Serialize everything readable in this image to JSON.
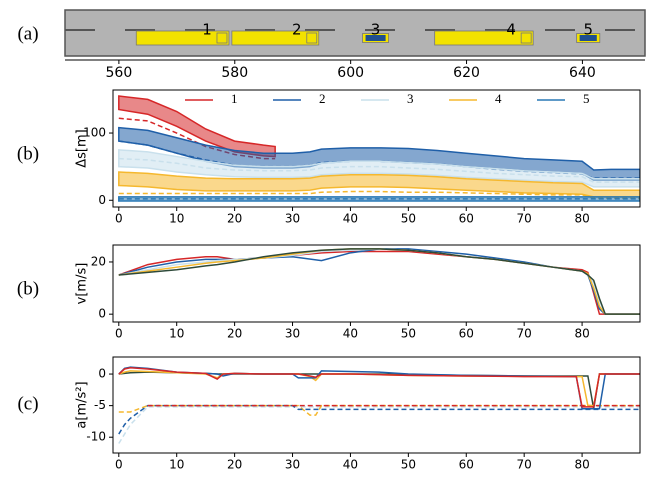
{
  "chart_data": [
    {
      "type": "scene",
      "panel_label": "(a)",
      "xlim": [
        550.7,
        650.8
      ],
      "xticks": [
        560,
        580,
        600,
        620,
        640
      ],
      "color": "#f2e200",
      "vehicles": [
        {
          "name": "1",
          "kind": "truck",
          "x": 571,
          "length": 16
        },
        {
          "name": "2",
          "kind": "truck",
          "x": 587,
          "length": 15
        },
        {
          "name": "3",
          "kind": "car",
          "x": 604.3,
          "length": 4.5
        },
        {
          "name": "4",
          "kind": "truck",
          "x": 623,
          "length": 17
        },
        {
          "name": "5",
          "kind": "car",
          "x": 641,
          "length": 4
        }
      ]
    },
    {
      "type": "line",
      "panel_label": "(b)",
      "ylabel": "Δs[m]",
      "legend": "top",
      "x": [
        0,
        5,
        10,
        15,
        20,
        25,
        27,
        30,
        33,
        35,
        40,
        45,
        50,
        55,
        60,
        65,
        70,
        75,
        80,
        82,
        85,
        90
      ],
      "xlim": [
        -1,
        90
      ],
      "xticks": [
        0,
        10,
        20,
        30,
        40,
        50,
        60,
        70,
        80
      ],
      "ylim": [
        -10,
        164
      ],
      "yticks": [
        0,
        100
      ],
      "series": [
        {
          "name": "1",
          "color": "#d62728",
          "dashed": true,
          "values": [
            122,
            118,
            100,
            80,
            68,
            62,
            62,
            null,
            null,
            null,
            null,
            null,
            null,
            null,
            null,
            null,
            null,
            null,
            null,
            null,
            null,
            null
          ],
          "upper": [
            155,
            150,
            132,
            106,
            88,
            82,
            80,
            null,
            null,
            null,
            null,
            null,
            null,
            null,
            null,
            null,
            null,
            null,
            null,
            null,
            null,
            null
          ],
          "lower": [
            135,
            128,
            110,
            88,
            72,
            66,
            65,
            null,
            null,
            null,
            null,
            null,
            null,
            null,
            null,
            null,
            null,
            null,
            null,
            null,
            null,
            null
          ]
        },
        {
          "name": "2",
          "color": "#1f5fa8",
          "dashed": true,
          "values": [
            88,
            82,
            70,
            60,
            52,
            50,
            50,
            50,
            52,
            56,
            58,
            58,
            56,
            54,
            50,
            46,
            43,
            41,
            39,
            33,
            33,
            33
          ],
          "upper": [
            108,
            104,
            93,
            82,
            74,
            70,
            70,
            70,
            72,
            76,
            78,
            78,
            77,
            74,
            70,
            66,
            62,
            60,
            58,
            45,
            46,
            46
          ],
          "lower": [
            88,
            82,
            70,
            58,
            50,
            48,
            48,
            48,
            50,
            55,
            58,
            58,
            56,
            54,
            50,
            47,
            44,
            42,
            40,
            30,
            30,
            30
          ]
        },
        {
          "name": "3",
          "color": "#c9e0ec",
          "dashed": true,
          "values": [
            62,
            60,
            55,
            48,
            45,
            44,
            44,
            44,
            45,
            48,
            50,
            50,
            48,
            46,
            43,
            40,
            38,
            36,
            35,
            27,
            27,
            27
          ],
          "upper": [
            75,
            72,
            65,
            58,
            52,
            50,
            50,
            50,
            52,
            55,
            58,
            58,
            56,
            54,
            50,
            47,
            44,
            42,
            40,
            32,
            32,
            32
          ],
          "lower": [
            50,
            48,
            42,
            38,
            35,
            34,
            34,
            34,
            35,
            38,
            40,
            40,
            39,
            37,
            34,
            32,
            30,
            28,
            27,
            20,
            20,
            20
          ]
        },
        {
          "name": "4",
          "color": "#f5b82e",
          "dashed": true,
          "values": [
            10,
            10,
            10,
            10,
            10,
            10,
            10,
            10,
            10,
            12,
            13,
            13,
            12,
            12,
            11,
            10,
            9,
            8,
            8,
            3,
            3,
            3
          ],
          "upper": [
            42,
            40,
            36,
            33,
            32,
            32,
            32,
            32,
            33,
            36,
            38,
            38,
            37,
            35,
            32,
            30,
            28,
            26,
            25,
            15,
            15,
            15
          ],
          "lower": [
            22,
            20,
            16,
            14,
            14,
            14,
            14,
            14,
            15,
            18,
            20,
            20,
            19,
            17,
            15,
            13,
            11,
            10,
            9,
            5,
            5,
            5
          ]
        },
        {
          "name": "5",
          "color": "#2878b5",
          "dashed": true,
          "values": [
            2,
            2,
            2,
            2,
            2,
            2,
            2,
            2,
            2,
            2,
            2,
            2,
            2,
            2,
            2,
            2,
            2,
            2,
            2,
            2,
            2,
            2
          ],
          "upper": [
            5,
            5,
            5,
            5,
            5,
            5,
            5,
            5,
            5,
            5,
            5,
            5,
            5,
            5,
            5,
            5,
            5,
            5,
            5,
            5,
            5,
            5
          ],
          "lower": [
            -1,
            -1,
            -1,
            -1,
            -1,
            -1,
            -1,
            -1,
            -1,
            -1,
            -1,
            -1,
            -1,
            -1,
            -1,
            -1,
            -1,
            -1,
            -1,
            -1,
            -1,
            -1
          ]
        }
      ]
    },
    {
      "type": "line",
      "panel_label": "(b)",
      "ylabel": "v[m/s]",
      "x": [
        0,
        5,
        10,
        15,
        17,
        20,
        25,
        30,
        35,
        40,
        45,
        50,
        55,
        60,
        65,
        70,
        75,
        80,
        81,
        82,
        83,
        84,
        90
      ],
      "xlim": [
        -1,
        90
      ],
      "xticks": [
        0,
        10,
        20,
        30,
        40,
        50,
        60,
        70,
        80
      ],
      "ylim": [
        -3,
        26.5
      ],
      "yticks": [
        0,
        20
      ],
      "series": [
        {
          "color": "#d62728",
          "values": [
            15,
            19,
            21,
            22,
            22,
            21,
            21.5,
            22.5,
            23.5,
            24,
            24,
            24,
            23,
            22,
            21,
            19.5,
            18,
            17,
            16,
            8,
            0,
            0,
            0
          ]
        },
        {
          "color": "#1f5fa8",
          "values": [
            15,
            18,
            20,
            21,
            21,
            21,
            21.5,
            22,
            20.5,
            23.5,
            25,
            25,
            24,
            23,
            21.5,
            20,
            18,
            16.5,
            15,
            9,
            2,
            0,
            0
          ]
        },
        {
          "color": "#c9e0ec",
          "values": [
            15,
            17,
            19,
            20,
            20.5,
            21,
            21.5,
            22.5,
            24,
            24.5,
            25,
            24.5,
            23.5,
            22,
            21,
            19.5,
            18,
            16.5,
            15,
            12,
            5,
            0,
            0
          ]
        },
        {
          "color": "#f5b82e",
          "values": [
            15,
            16.5,
            18,
            19.5,
            20,
            20.5,
            21.5,
            23,
            24.5,
            25,
            25,
            24.5,
            23.5,
            22,
            21,
            19.5,
            18,
            16.5,
            15.5,
            10,
            3,
            0,
            0
          ]
        },
        {
          "color": "#2e4a3a",
          "values": [
            15,
            16,
            17,
            18.5,
            19,
            20,
            22,
            23.5,
            24.5,
            25,
            25,
            24.5,
            23.5,
            22,
            21,
            19.5,
            18,
            16.5,
            15,
            13,
            6,
            0,
            0
          ]
        }
      ]
    },
    {
      "type": "line",
      "panel_label": "(c)",
      "ylabel": "a[m/s²]",
      "x": [
        0,
        1,
        2,
        5,
        10,
        15,
        17,
        18,
        20,
        25,
        30,
        31,
        33,
        34,
        35,
        40,
        45,
        50,
        60,
        70,
        79,
        80,
        81,
        82,
        83,
        84,
        90
      ],
      "xlim": [
        -1,
        90
      ],
      "xticks": [
        0,
        10,
        20,
        30,
        40,
        50,
        60,
        70,
        80
      ],
      "ylim": [
        -12.5,
        2.7
      ],
      "yticks": [
        -10,
        -5,
        0
      ],
      "series": [
        {
          "color": "#c9e0ec",
          "dashed": true,
          "values": [
            -11,
            -9.5,
            -8,
            -5.2,
            -5.2,
            -5.2,
            -5.2,
            -5.2,
            -5.2,
            -5.2,
            -5.2,
            -5.2,
            -5.2,
            -5.2,
            -5.2,
            -5.2,
            -5.2,
            -5.2,
            -5.2,
            -5.2,
            -5.2,
            -5.2,
            -5.2,
            -5.2,
            -5.2,
            -5.2,
            -5.2
          ]
        },
        {
          "color": "#f5b82e",
          "dashed": true,
          "values": [
            -6,
            -6,
            -6,
            -5,
            -5,
            -5,
            -5,
            -5,
            -5,
            -5,
            -5,
            -5,
            -6.5,
            -6.5,
            -5,
            -5,
            -5,
            -5,
            -5,
            -5,
            -5,
            -5,
            -5,
            -5,
            -5,
            -5,
            -5
          ]
        },
        {
          "color": "#1f5fa8",
          "dashed": true,
          "values": [
            -9.5,
            -8,
            -7,
            -5,
            -5,
            -5,
            -5,
            -5,
            -5,
            -5,
            -5,
            -5.6,
            -5.6,
            -5.6,
            -5.6,
            -5.6,
            -5.6,
            -5.6,
            -5.6,
            -5.6,
            -5.6,
            -5.6,
            -5.6,
            -5.6,
            -5.6,
            -5.6,
            -5.6
          ]
        },
        {
          "color": "#d62728",
          "dashed": true,
          "values": [
            null,
            null,
            null,
            -5,
            -5,
            -5,
            -5,
            -5,
            -5,
            -5,
            -5,
            -5,
            -5,
            -5,
            -5,
            -5,
            -5,
            -5,
            -5,
            -5,
            -5,
            -5,
            -5,
            -5,
            -5,
            -5,
            -5
          ]
        },
        {
          "color": "#2e4a3a",
          "values": [
            0,
            0.1,
            0.2,
            0.3,
            0.2,
            0.1,
            0,
            0,
            0,
            0,
            0,
            0,
            0,
            0,
            0,
            0,
            0,
            -0.1,
            -0.2,
            -0.3,
            -0.3,
            -0.3,
            -0.3,
            -5.5,
            0,
            0,
            0
          ]
        },
        {
          "color": "#f5b82e",
          "values": [
            0,
            0.3,
            0.5,
            0.4,
            0.2,
            0,
            -0.6,
            0,
            0.1,
            0,
            0,
            0,
            -0.4,
            -1,
            0,
            0,
            -0.1,
            -0.2,
            -0.3,
            -0.3,
            -0.4,
            -0.4,
            -5,
            -5,
            0,
            0,
            0
          ]
        },
        {
          "color": "#1f5fa8",
          "values": [
            0,
            0.9,
            1.1,
            0.9,
            0.3,
            0.1,
            0,
            -0.3,
            0.1,
            0,
            0,
            -0.6,
            -0.6,
            -0.6,
            0.5,
            0.4,
            0.3,
            0,
            -0.2,
            -0.3,
            -0.4,
            -5.5,
            -5.5,
            -5.5,
            -5.5,
            0,
            0
          ]
        },
        {
          "color": "#d62728",
          "values": [
            0,
            0.8,
            1,
            0.8,
            0.3,
            0.1,
            -0.8,
            0,
            0.1,
            0,
            0,
            0,
            -0.3,
            -0.5,
            0,
            0,
            -0.1,
            -0.2,
            -0.3,
            -0.4,
            -0.4,
            -5.2,
            -5.2,
            -5.2,
            0,
            0,
            0
          ]
        }
      ]
    }
  ]
}
